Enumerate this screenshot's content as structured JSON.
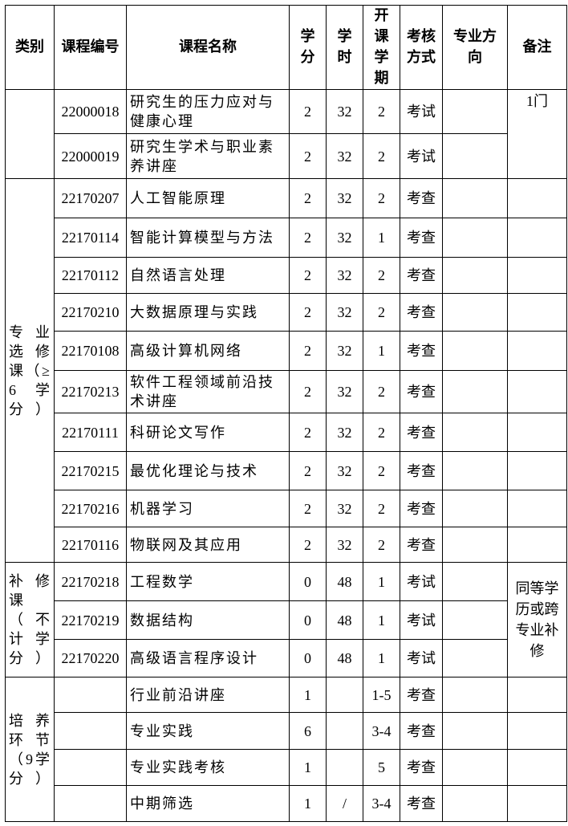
{
  "headers": [
    "类别",
    "课程编号",
    "课程名称",
    "学分",
    "学时",
    "开课学期",
    "考核方式",
    "专业方向",
    "备注"
  ],
  "groups": [
    {
      "category": "",
      "remark": "1门",
      "remark_span": true,
      "rows": [
        {
          "code": "22000018",
          "name": "研究生的压力应对与健康心理",
          "credit": "2",
          "hours": "32",
          "term": "2",
          "exam": "考试",
          "direction": ""
        },
        {
          "code": "22000019",
          "name": "研究生学术与职业素养讲座",
          "credit": "2",
          "hours": "32",
          "term": "2",
          "exam": "考试",
          "direction": ""
        }
      ]
    },
    {
      "category": "专业选修课（≥6学分）",
      "remark": "",
      "remark_span": false,
      "rows": [
        {
          "code": "22170207",
          "name": "人工智能原理",
          "credit": "2",
          "hours": "32",
          "term": "2",
          "exam": "考查",
          "direction": ""
        },
        {
          "code": "22170114",
          "name": "智能计算模型与方法",
          "credit": "2",
          "hours": "32",
          "term": "1",
          "exam": "考查",
          "direction": ""
        },
        {
          "code": "22170112",
          "name": "自然语言处理",
          "credit": "2",
          "hours": "32",
          "term": "2",
          "exam": "考查",
          "direction": ""
        },
        {
          "code": "22170210",
          "name": "大数据原理与实践",
          "credit": "2",
          "hours": "32",
          "term": "2",
          "exam": "考查",
          "direction": ""
        },
        {
          "code": "22170108",
          "name": "高级计算机网络",
          "credit": "2",
          "hours": "32",
          "term": "1",
          "exam": "考查",
          "direction": ""
        },
        {
          "code": "22170213",
          "name": "软件工程领域前沿技术讲座",
          "credit": "2",
          "hours": "32",
          "term": "2",
          "exam": "考查",
          "direction": ""
        },
        {
          "code": "22170111",
          "name": "科研论文写作",
          "credit": "2",
          "hours": "32",
          "term": "2",
          "exam": "考查",
          "direction": ""
        },
        {
          "code": "22170215",
          "name": "最优化理论与技术",
          "credit": "2",
          "hours": "32",
          "term": "2",
          "exam": "考查",
          "direction": ""
        },
        {
          "code": "22170216",
          "name": "机器学习",
          "credit": "2",
          "hours": "32",
          "term": "2",
          "exam": "考查",
          "direction": ""
        },
        {
          "code": "22170116",
          "name": "物联网及其应用",
          "credit": "2",
          "hours": "32",
          "term": "2",
          "exam": "考查",
          "direction": ""
        }
      ]
    },
    {
      "category": "补修课（不计学分）",
      "remark": "同等学历或跨专业补修",
      "remark_span": true,
      "rows": [
        {
          "code": "22170218",
          "name": "工程数学",
          "credit": "0",
          "hours": "48",
          "term": "1",
          "exam": "考试",
          "direction": ""
        },
        {
          "code": "22170219",
          "name": "数据结构",
          "credit": "0",
          "hours": "48",
          "term": "1",
          "exam": "考试",
          "direction": ""
        },
        {
          "code": "22170220",
          "name": "高级语言程序设计",
          "credit": "0",
          "hours": "48",
          "term": "1",
          "exam": "考试",
          "direction": ""
        }
      ]
    },
    {
      "category": "培养环节（9学分）",
      "remark": "",
      "remark_span": false,
      "rows": [
        {
          "code": "",
          "name": "行业前沿讲座",
          "credit": "1",
          "hours": "",
          "term": "1-5",
          "exam": "考查",
          "direction": ""
        },
        {
          "code": "",
          "name": "专业实践",
          "credit": "6",
          "hours": "",
          "term": "3-4",
          "exam": "考查",
          "direction": ""
        },
        {
          "code": "",
          "name": "专业实践考核",
          "credit": "1",
          "hours": "",
          "term": "5",
          "exam": "考查",
          "direction": ""
        },
        {
          "code": "",
          "name": "中期筛选",
          "credit": "1",
          "hours": "/",
          "term": "3-4",
          "exam": "考查",
          "direction": ""
        }
      ]
    }
  ]
}
